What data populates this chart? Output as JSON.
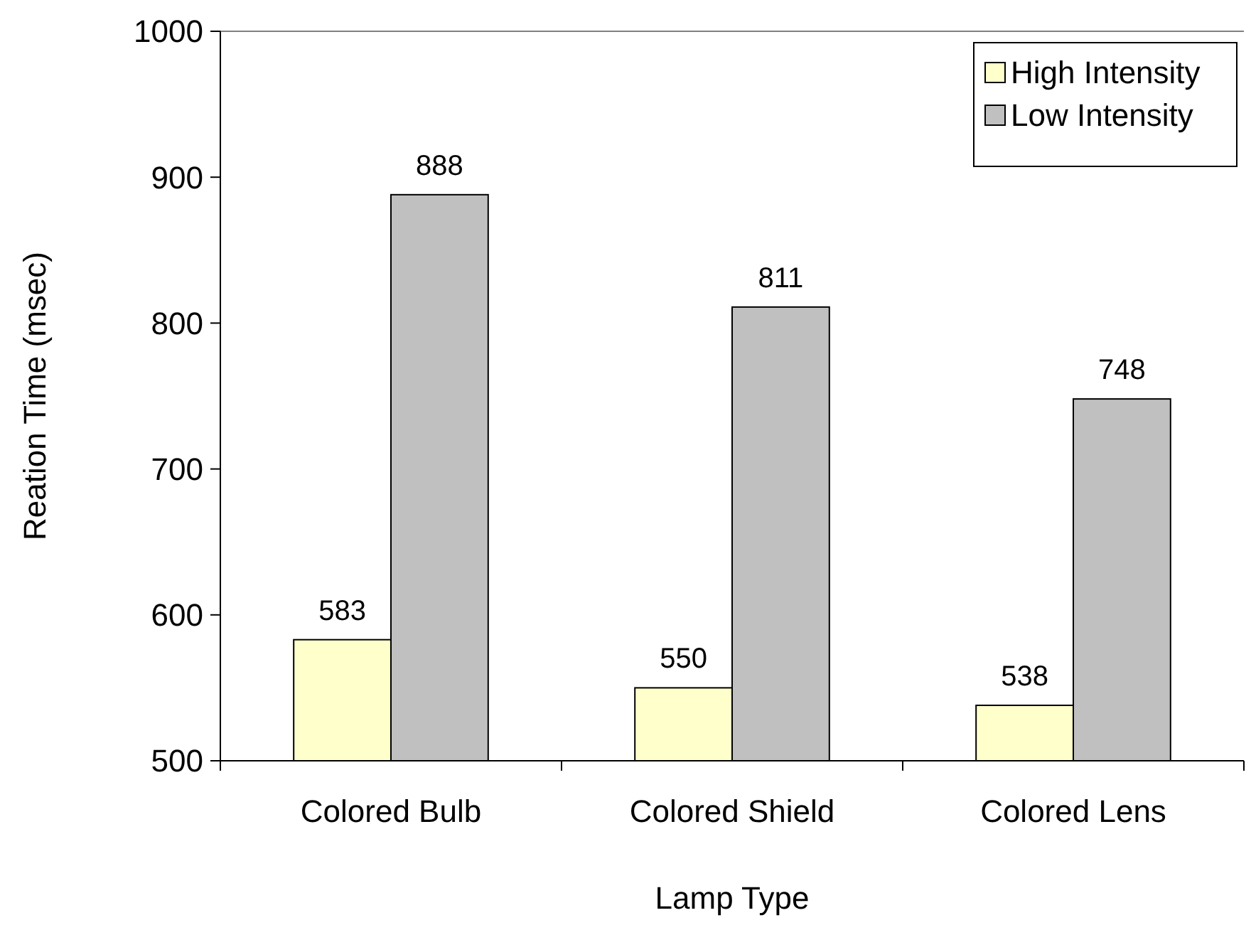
{
  "chart_data": {
    "type": "bar",
    "xlabel": "Lamp Type",
    "ylabel": "Reation Time (msec)",
    "categories": [
      "Colored Bulb",
      "Colored Shield",
      "Colored Lens"
    ],
    "series": [
      {
        "name": "High Intensity",
        "color": "#ffffcc",
        "values": [
          583,
          550,
          538
        ]
      },
      {
        "name": "Low Intensity",
        "color": "#c0c0c0",
        "values": [
          888,
          811,
          748
        ]
      }
    ],
    "ylim": [
      500,
      1000
    ],
    "yticks": [
      500,
      600,
      700,
      800,
      900,
      1000
    ],
    "data_labels": true,
    "legend": "top right",
    "grid": false
  }
}
